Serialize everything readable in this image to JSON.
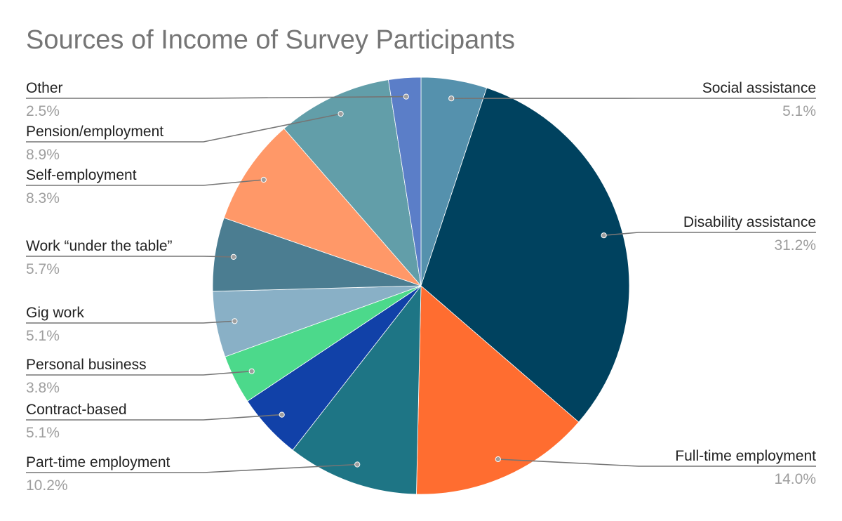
{
  "chart_data": {
    "type": "pie",
    "title": "Sources of Income of Survey Participants",
    "start": "top, clockwise",
    "slices": [
      {
        "label": "Social assistance",
        "value": 5.1,
        "display": "5.1%",
        "color": "#5591ad",
        "side": "right"
      },
      {
        "label": "Disability assistance",
        "value": 31.2,
        "display": "31.2%",
        "color": "#00425f",
        "side": "right"
      },
      {
        "label": "Full-time employment",
        "value": 14.0,
        "display": "14.0%",
        "color": "#ff6d30",
        "side": "right"
      },
      {
        "label": "Part-time employment",
        "value": 10.2,
        "display": "10.2%",
        "color": "#1e7585",
        "side": "left"
      },
      {
        "label": "Contract-based",
        "value": 5.1,
        "display": "5.1%",
        "color": "#1141a8",
        "side": "left"
      },
      {
        "label": "Personal business",
        "value": 3.8,
        "display": "3.8%",
        "color": "#4cd98b",
        "side": "left"
      },
      {
        "label": "Gig work",
        "value": 5.1,
        "display": "5.1%",
        "color": "#89b0c6",
        "side": "left"
      },
      {
        "label": "Work “under the table”",
        "value": 5.7,
        "display": "5.7%",
        "color": "#4b7d91",
        "side": "left"
      },
      {
        "label": "Self-employment",
        "value": 8.3,
        "display": "8.3%",
        "color": "#ff9868",
        "side": "left"
      },
      {
        "label": "Pension/employment",
        "value": 8.9,
        "display": "8.9%",
        "color": "#629ea9",
        "side": "left"
      },
      {
        "label": "Other",
        "value": 2.5,
        "display": "2.5%",
        "color": "#5b7ec8",
        "side": "left"
      }
    ]
  }
}
